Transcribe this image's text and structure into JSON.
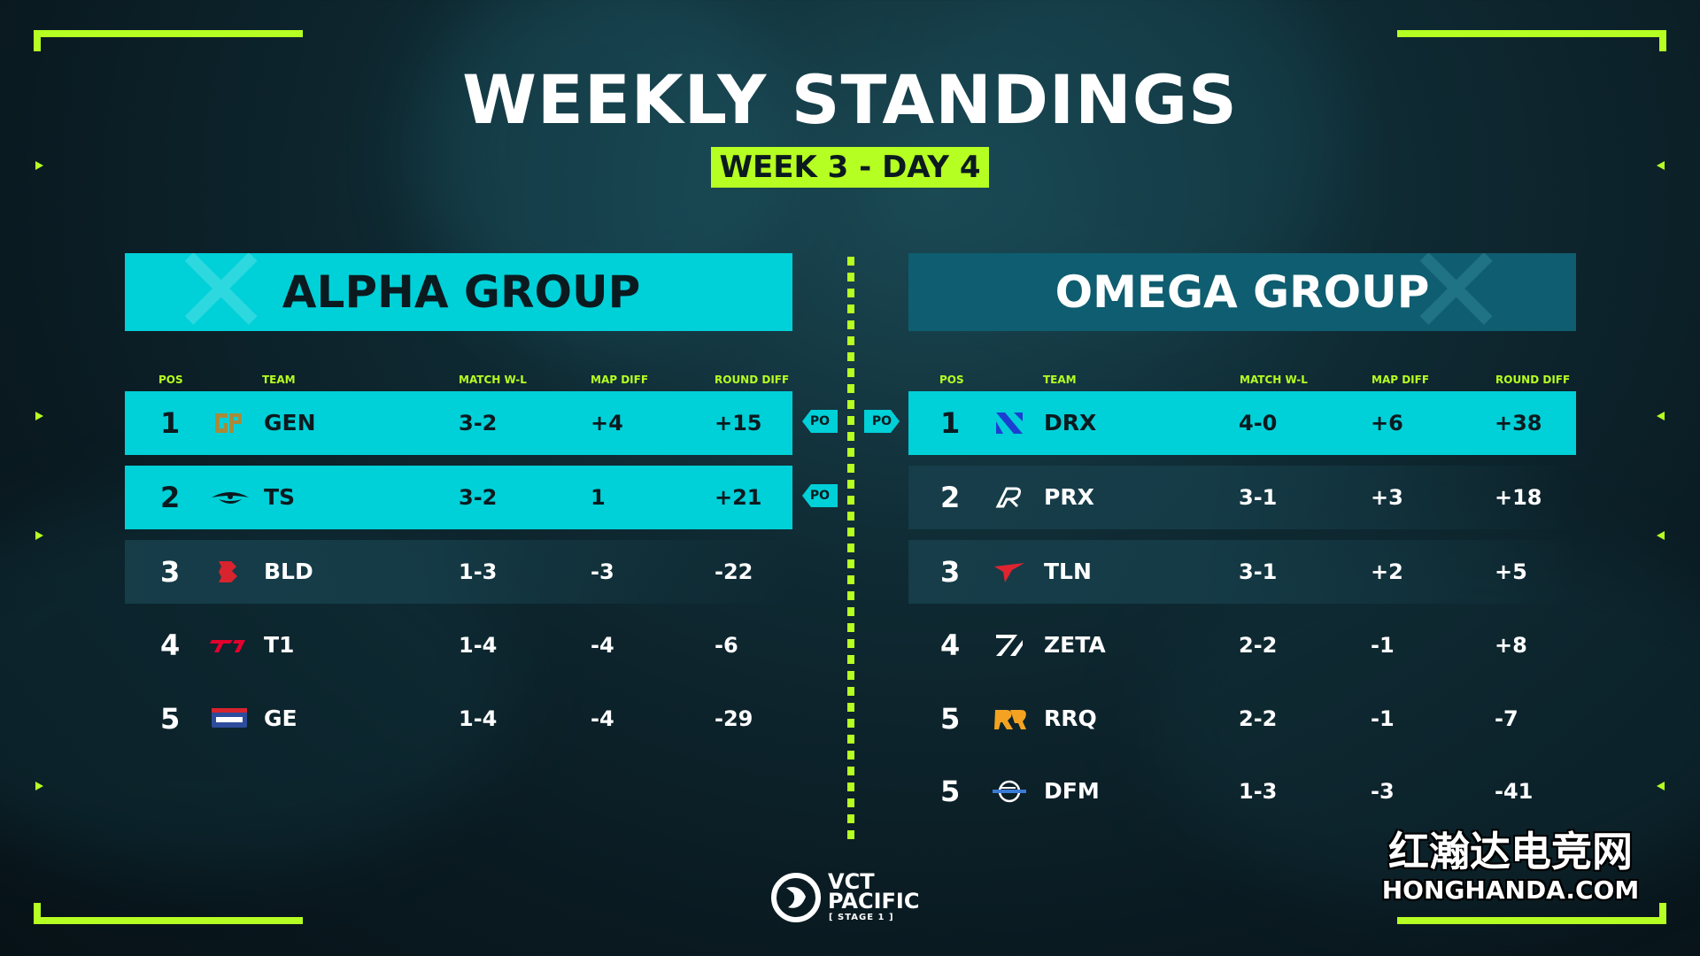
{
  "title": "WEEKLY STANDINGS",
  "subtitle": "WEEK 3 - DAY 4",
  "columns": {
    "pos": "POS",
    "team": "TEAM",
    "match": "MATCH W-L",
    "map": "MAP DIFF",
    "round": "ROUND DIFF"
  },
  "po_label": "PO",
  "alpha": {
    "header": "ALPHA GROUP",
    "rows": [
      {
        "pos": "1",
        "team": "GEN",
        "logo": "gen-logo",
        "match": "3-2",
        "map": "+4",
        "round": "+15"
      },
      {
        "pos": "2",
        "team": "TS",
        "logo": "ts-logo",
        "match": "3-2",
        "map": "1",
        "round": "+21"
      },
      {
        "pos": "3",
        "team": "BLD",
        "logo": "bld-logo",
        "match": "1-3",
        "map": "-3",
        "round": "-22"
      },
      {
        "pos": "4",
        "team": "T1",
        "logo": "t1-logo",
        "match": "1-4",
        "map": "-4",
        "round": "-6"
      },
      {
        "pos": "5",
        "team": "GE",
        "logo": "global-esports-logo",
        "match": "1-4",
        "map": "-4",
        "round": "-29"
      }
    ]
  },
  "omega": {
    "header": "OMEGA GROUP",
    "rows": [
      {
        "pos": "1",
        "team": "DRX",
        "logo": "drx-logo",
        "match": "4-0",
        "map": "+6",
        "round": "+38"
      },
      {
        "pos": "2",
        "team": "PRX",
        "logo": "prx-logo",
        "match": "3-1",
        "map": "+3",
        "round": "+18"
      },
      {
        "pos": "3",
        "team": "TLN",
        "logo": "tln-logo",
        "match": "3-1",
        "map": "+2",
        "round": "+5"
      },
      {
        "pos": "4",
        "team": "ZETA",
        "logo": "zeta-logo",
        "match": "2-2",
        "map": "-1",
        "round": "+8"
      },
      {
        "pos": "5",
        "team": "RRQ",
        "logo": "rrq-logo",
        "match": "2-2",
        "map": "-1",
        "round": "-7"
      },
      {
        "pos": "5",
        "team": "DFM",
        "logo": "dfm-logo",
        "match": "1-3",
        "map": "-3",
        "round": "-41"
      }
    ]
  },
  "footer": {
    "brand_line1": "VCT",
    "brand_line2": "PACIFIC",
    "stage": "[ STAGE 1 ]"
  },
  "watermark": {
    "cn": "红瀚达电竞网",
    "en": "HONGHANDA.COM"
  },
  "colors": {
    "accent_green": "#b6ff22",
    "cyan": "#00d0d8",
    "omega_blue": "#0f5d70",
    "background": "#0a1a21"
  }
}
